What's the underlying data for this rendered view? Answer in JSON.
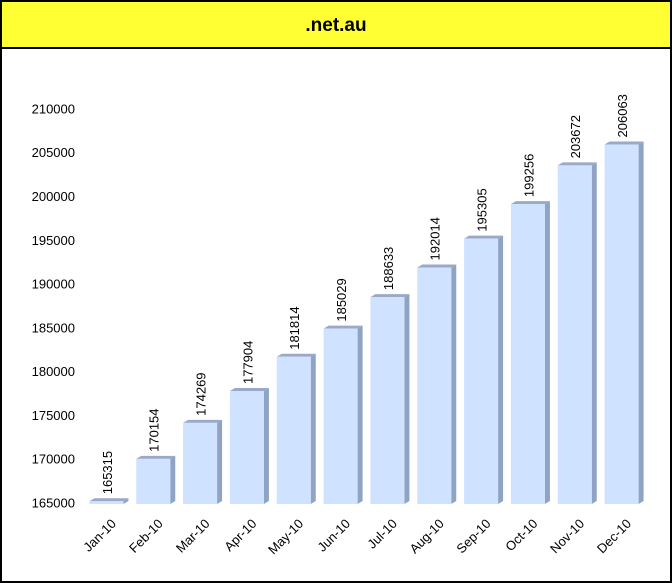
{
  "chart_data": {
    "type": "bar",
    "title": ".net.au",
    "categories": [
      "Jan-10",
      "Feb-10",
      "Mar-10",
      "Apr-10",
      "May-10",
      "Jun-10",
      "Jul-10",
      "Aug-10",
      "Sep-10",
      "Oct-10",
      "Nov-10",
      "Dec-10"
    ],
    "values": [
      165315,
      170154,
      174269,
      177904,
      181814,
      185029,
      188633,
      192014,
      195305,
      199256,
      203672,
      206063
    ],
    "color": "#cfe2ff",
    "ylim": [
      165000,
      210000
    ],
    "yticks": [
      165000,
      170000,
      175000,
      180000,
      185000,
      190000,
      195000,
      200000,
      205000,
      210000
    ],
    "grid": false
  }
}
